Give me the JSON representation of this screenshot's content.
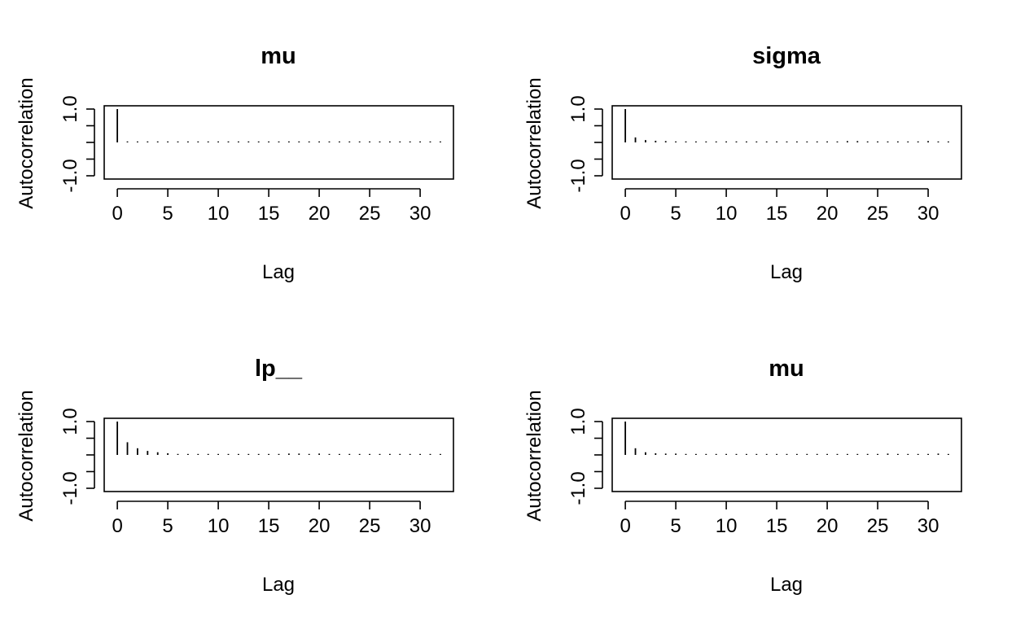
{
  "chart_data": [
    {
      "type": "bar",
      "title": "mu",
      "xlabel": "Lag",
      "ylabel": "Autocorrelation",
      "xlim": [
        -1.3,
        33.3
      ],
      "ylim": [
        -1.0,
        1.0
      ],
      "x_ticks": [
        0,
        5,
        10,
        15,
        20,
        25,
        30
      ],
      "y_ticks": [
        -1.0,
        -0.5,
        0.0,
        0.5,
        1.0
      ],
      "y_tick_labels": [
        "-1.0",
        "",
        "",
        "",
        "1.0"
      ],
      "x": [
        0,
        1,
        2,
        3,
        4,
        5,
        6,
        7,
        8,
        9,
        10,
        11,
        12,
        13,
        14,
        15,
        16,
        17,
        18,
        19,
        20,
        21,
        22,
        23,
        24,
        25,
        26,
        27,
        28,
        29,
        30,
        31,
        32
      ],
      "values": [
        1.0,
        0.03,
        0.02,
        0.03,
        0.03,
        0.02,
        0.02,
        0.02,
        0.02,
        0.02,
        0.02,
        0.03,
        0.02,
        0.03,
        0.02,
        0.02,
        0.02,
        0.03,
        0.03,
        0.02,
        0.01,
        0.02,
        0.02,
        0.01,
        0.02,
        0.02,
        0.01,
        0.02,
        0.02,
        0.01,
        0.01,
        0.01,
        0.01
      ],
      "grid": false
    },
    {
      "type": "bar",
      "title": "sigma",
      "xlabel": "Lag",
      "ylabel": "Autocorrelation",
      "xlim": [
        -1.3,
        33.3
      ],
      "ylim": [
        -1.0,
        1.0
      ],
      "x_ticks": [
        0,
        5,
        10,
        15,
        20,
        25,
        30
      ],
      "y_ticks": [
        -1.0,
        -0.5,
        0.0,
        0.5,
        1.0
      ],
      "y_tick_labels": [
        "-1.0",
        "",
        "",
        "",
        "1.0"
      ],
      "x": [
        0,
        1,
        2,
        3,
        4,
        5,
        6,
        7,
        8,
        9,
        10,
        11,
        12,
        13,
        14,
        15,
        16,
        17,
        18,
        19,
        20,
        21,
        22,
        23,
        24,
        25,
        26,
        27,
        28,
        29,
        30,
        31,
        32
      ],
      "values": [
        1.0,
        0.15,
        0.07,
        0.05,
        0.04,
        0.03,
        0.03,
        0.02,
        0.02,
        0.02,
        0.03,
        0.03,
        0.02,
        0.02,
        0.02,
        0.03,
        0.02,
        0.02,
        0.02,
        0.03,
        0.03,
        0.02,
        0.04,
        0.04,
        0.03,
        0.03,
        0.02,
        0.03,
        0.02,
        0.03,
        0.04,
        0.02,
        0.01
      ],
      "grid": false
    },
    {
      "type": "bar",
      "title": "lp__",
      "xlabel": "Lag",
      "ylabel": "Autocorrelation",
      "xlim": [
        -1.3,
        33.3
      ],
      "ylim": [
        -1.0,
        1.0
      ],
      "x_ticks": [
        0,
        5,
        10,
        15,
        20,
        25,
        30
      ],
      "y_ticks": [
        -1.0,
        -0.5,
        0.0,
        0.5,
        1.0
      ],
      "y_tick_labels": [
        "-1.0",
        "",
        "",
        "",
        "1.0"
      ],
      "x": [
        0,
        1,
        2,
        3,
        4,
        5,
        6,
        7,
        8,
        9,
        10,
        11,
        12,
        13,
        14,
        15,
        16,
        17,
        18,
        19,
        20,
        21,
        22,
        23,
        24,
        25,
        26,
        27,
        28,
        29,
        30,
        31,
        32
      ],
      "values": [
        1.0,
        0.38,
        0.2,
        0.12,
        0.08,
        0.05,
        0.03,
        0.02,
        0.02,
        0.03,
        0.02,
        0.02,
        0.02,
        0.02,
        0.02,
        0.02,
        0.03,
        0.04,
        0.04,
        0.03,
        0.04,
        0.02,
        0.02,
        0.03,
        0.02,
        0.02,
        0.02,
        0.03,
        0.03,
        0.02,
        0.01,
        0.02,
        0.02
      ],
      "grid": false
    },
    {
      "type": "bar",
      "title": "mu",
      "xlabel": "Lag",
      "ylabel": "Autocorrelation",
      "xlim": [
        -1.3,
        33.3
      ],
      "ylim": [
        -1.0,
        1.0
      ],
      "x_ticks": [
        0,
        5,
        10,
        15,
        20,
        25,
        30
      ],
      "y_ticks": [
        -1.0,
        -0.5,
        0.0,
        0.5,
        1.0
      ],
      "y_tick_labels": [
        "-1.0",
        "",
        "",
        "",
        "1.0"
      ],
      "x": [
        0,
        1,
        2,
        3,
        4,
        5,
        6,
        7,
        8,
        9,
        10,
        11,
        12,
        13,
        14,
        15,
        16,
        17,
        18,
        19,
        20,
        21,
        22,
        23,
        24,
        25,
        26,
        27,
        28,
        29,
        30,
        31,
        32
      ],
      "values": [
        1.0,
        0.2,
        0.08,
        0.05,
        0.04,
        0.04,
        0.03,
        0.02,
        0.02,
        0.02,
        0.03,
        0.02,
        0.02,
        0.02,
        0.02,
        0.02,
        0.02,
        0.02,
        0.03,
        0.03,
        0.02,
        0.02,
        0.02,
        0.02,
        0.03,
        0.03,
        0.04,
        0.03,
        0.02,
        0.02,
        0.03,
        0.04,
        0.01
      ],
      "grid": false
    }
  ]
}
